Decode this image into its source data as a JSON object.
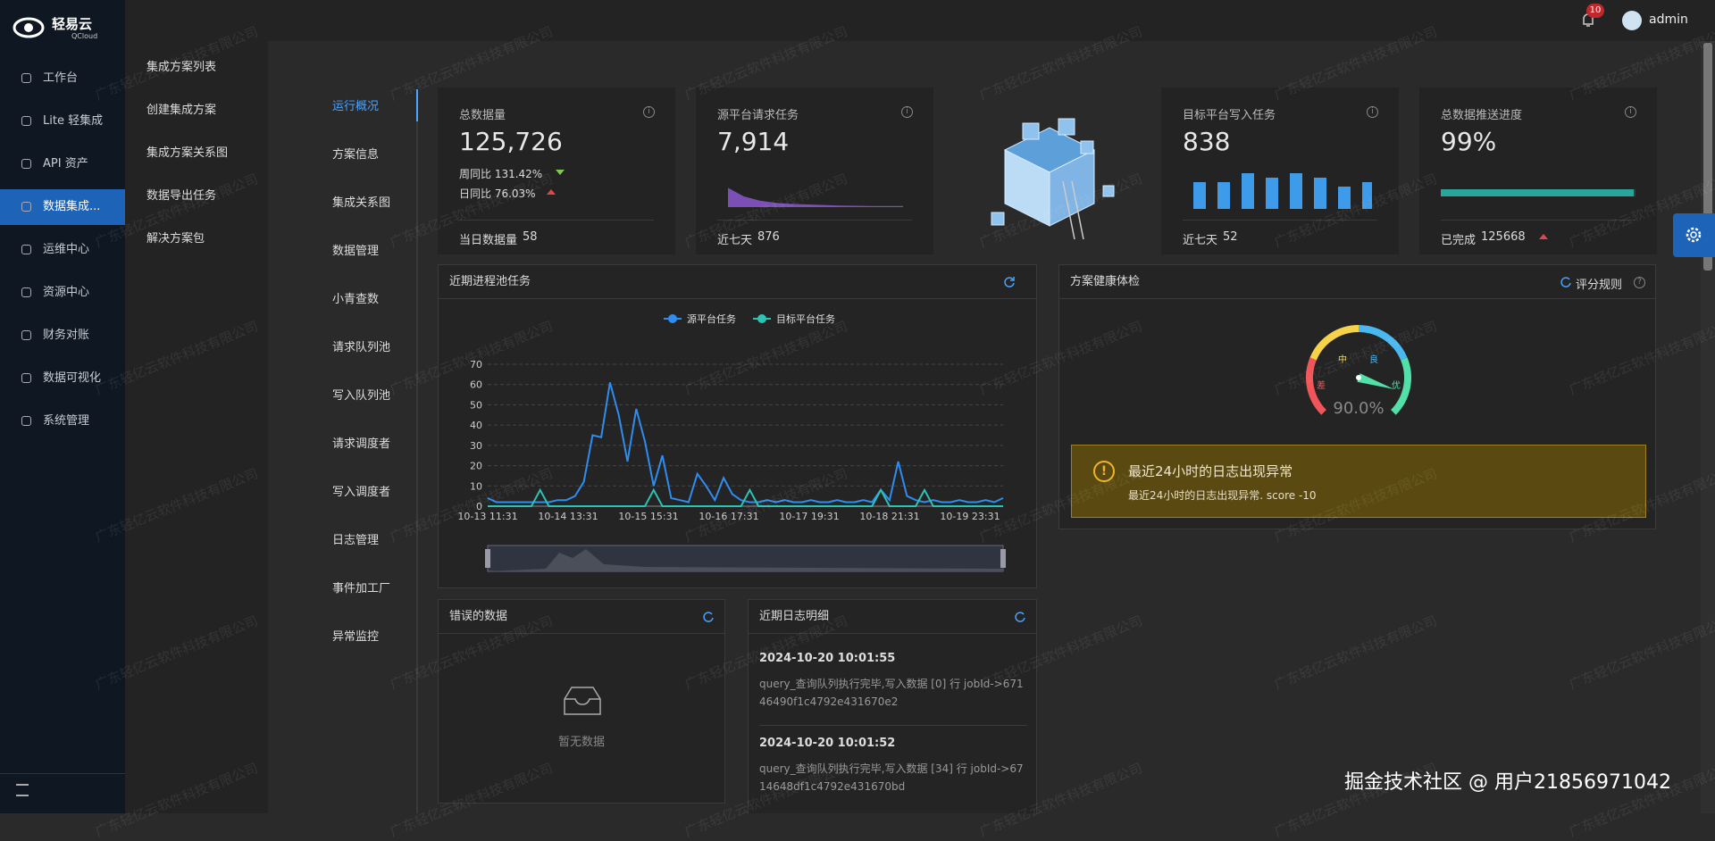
{
  "brand": {
    "name": "轻易云",
    "sub": "QCloud"
  },
  "topbar": {
    "badge": "10",
    "user": "admin"
  },
  "menu": [
    "工作台",
    "Lite 轻集成",
    "API 资产",
    "数据集成...",
    "运维中心",
    "资源中心",
    "财务对账",
    "数据可视化",
    "系统管理"
  ],
  "submenu": [
    "集成方案列表",
    "创建集成方案",
    "集成方案关系图",
    "数据导出任务",
    "解决方案包"
  ],
  "tabs": [
    "运行概况",
    "方案信息",
    "集成关系图",
    "数据管理",
    "小青查数",
    "请求队列池",
    "写入队列池",
    "请求调度者",
    "写入调度者",
    "日志管理",
    "事件加工厂",
    "异常监控"
  ],
  "stats": [
    {
      "title": "总数据量",
      "value": "125,726",
      "week": "周同比 131.42%",
      "day": "日同比 76.03%",
      "foot_label": "当日数据量",
      "foot_value": "58"
    },
    {
      "title": "源平台请求任务",
      "value": "7,914",
      "spark": [
        18,
        10,
        6,
        4,
        3,
        2.5,
        2,
        1.5,
        1.2,
        1,
        1,
        1
      ],
      "foot_label": "近七天",
      "foot_value": "876"
    },
    {
      "title": "目标平台写入任务",
      "value": "838",
      "bars": [
        6,
        6,
        8,
        7,
        8,
        7,
        5,
        6
      ],
      "foot_label": "近七天",
      "foot_value": "52"
    },
    {
      "title": "总数据推送进度",
      "value": "99%",
      "progress": 99,
      "foot_label": "已完成",
      "foot_value": "125668"
    }
  ],
  "trend": {
    "title": "近期进程池任务",
    "ylim": [
      0,
      70
    ],
    "yticks": [
      0,
      10,
      20,
      30,
      40,
      50,
      60,
      70
    ],
    "x_labels": [
      "10-13 11:31",
      "10-14 13:31",
      "10-15 15:31",
      "10-16 17:31",
      "10-17 19:31",
      "10-18 21:31",
      "10-19 23:31"
    ],
    "series": [
      {
        "name": "源平台任务",
        "color": "#2f8df0",
        "values": [
          4,
          2,
          2,
          2,
          2,
          2,
          2,
          2,
          3,
          3,
          5,
          12,
          35,
          34,
          61,
          45,
          22,
          48,
          32,
          10,
          25,
          4,
          3,
          2,
          16,
          10,
          3,
          14,
          6,
          3,
          2,
          2,
          3,
          2,
          3,
          2,
          2,
          3,
          2,
          2,
          3,
          2,
          2,
          3,
          2,
          8,
          3,
          22,
          5,
          3,
          2,
          3,
          2,
          2,
          3,
          2,
          2,
          3,
          2,
          4
        ]
      },
      {
        "name": "目标平台任务",
        "color": "#2cc3b5",
        "values": [
          0,
          0,
          0,
          0,
          0,
          0,
          8,
          0,
          0,
          0,
          0,
          0,
          0,
          0,
          0,
          0,
          0,
          0,
          0,
          8,
          0,
          0,
          0,
          0,
          0,
          0,
          0,
          0,
          0,
          0,
          8,
          0,
          0,
          0,
          0,
          0,
          0,
          0,
          0,
          0,
          0,
          0,
          0,
          0,
          0,
          8,
          0,
          0,
          0,
          0,
          8,
          0,
          0,
          0,
          0,
          0,
          0,
          0,
          0,
          0
        ]
      }
    ]
  },
  "health": {
    "title": "方案健康体检",
    "rule": "评分规则",
    "zones": [
      "差",
      "中",
      "良",
      "优"
    ],
    "gauge": {
      "value": 90,
      "label": "90.0%"
    },
    "alert": {
      "title": "最近24小时的日志出现异常",
      "detail": "最近24小时的日志出现异常. score -10"
    }
  },
  "errors": {
    "title": "错误的数据",
    "empty": "暂无数据"
  },
  "logs": {
    "title": "近期日志明细",
    "entries": [
      {
        "time": "2024-10-20 10:01:55",
        "text": "query_查询队列执行完毕,写入数据 [0] 行 jobId->67146490f1c4792e431670e2"
      },
      {
        "time": "2024-10-20 10:01:52",
        "text": "query_查询队列执行完毕,写入数据 [34] 行 jobId->6714648df1c4792e431670bd"
      }
    ]
  },
  "watermark": "广东轻亿云软件科技有限公司",
  "credit": "掘金技术社区 @ 用户21856971042"
}
